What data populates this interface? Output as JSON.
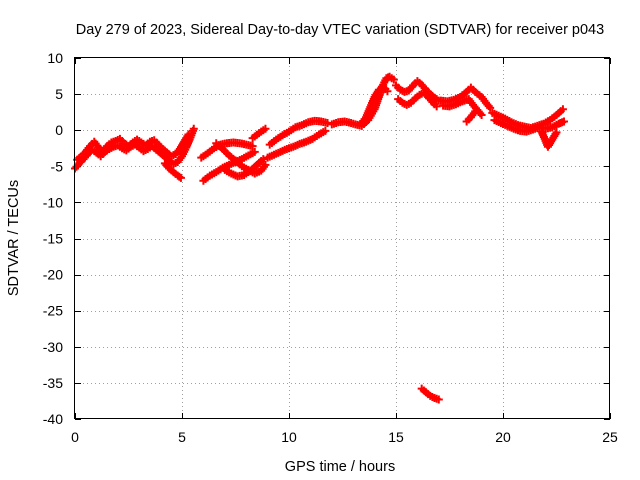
{
  "chart_data": {
    "type": "scatter",
    "title": "Day 279 of 2023, Sidereal Day-to-day VTEC variation (SDTVAR) for receiver p043",
    "xlabel": "GPS time / hours",
    "ylabel": "SDTVAR / TECUs",
    "xlim": [
      0,
      25
    ],
    "ylim": [
      -40,
      10
    ],
    "xticks": [
      0,
      5,
      10,
      15,
      20,
      25
    ],
    "yticks": [
      10,
      5,
      0,
      -5,
      -10,
      -15,
      -20,
      -25,
      -30,
      -35,
      -40
    ],
    "grid": true,
    "marker": "plus",
    "color": "#ff0000",
    "series": [
      {
        "name": "SDTVAR p043",
        "segments": [
          [
            [
              0.0,
              -5.3
            ],
            [
              0.2,
              -4.6
            ],
            [
              0.4,
              -4.0
            ],
            [
              0.6,
              -3.3
            ],
            [
              0.8,
              -2.7
            ],
            [
              1.0,
              -3.1
            ],
            [
              1.2,
              -3.6
            ],
            [
              1.4,
              -3.0
            ],
            [
              1.6,
              -2.6
            ],
            [
              1.8,
              -2.3
            ],
            [
              2.0,
              -2.1
            ],
            [
              2.2,
              -2.5
            ],
            [
              2.4,
              -2.8
            ],
            [
              2.6,
              -2.3
            ],
            [
              2.8,
              -2.0
            ],
            [
              3.0,
              -2.4
            ],
            [
              3.2,
              -2.9
            ],
            [
              3.4,
              -2.6
            ],
            [
              3.6,
              -2.2
            ],
            [
              3.8,
              -2.7
            ],
            [
              4.0,
              -3.2
            ],
            [
              4.2,
              -3.7
            ],
            [
              4.4,
              -4.2
            ],
            [
              4.6,
              -4.7
            ],
            [
              4.8,
              -4.4
            ],
            [
              5.0,
              -3.6
            ],
            [
              5.2,
              -2.4
            ],
            [
              5.4,
              -1.0
            ],
            [
              5.55,
              0.2
            ]
          ],
          [
            [
              0.1,
              -4.1
            ],
            [
              0.3,
              -3.6
            ],
            [
              0.5,
              -3.0
            ],
            [
              0.7,
              -2.2
            ],
            [
              0.9,
              -1.6
            ],
            [
              1.1,
              -2.4
            ],
            [
              1.3,
              -2.9
            ],
            [
              1.5,
              -2.2
            ],
            [
              1.7,
              -1.7
            ],
            [
              1.9,
              -1.5
            ],
            [
              2.1,
              -1.2
            ],
            [
              2.3,
              -1.8
            ],
            [
              2.5,
              -2.2
            ],
            [
              2.7,
              -1.7
            ],
            [
              2.9,
              -1.3
            ],
            [
              3.1,
              -1.7
            ],
            [
              3.3,
              -2.1
            ],
            [
              3.5,
              -1.6
            ],
            [
              3.7,
              -1.4
            ],
            [
              3.9,
              -2.0
            ],
            [
              4.1,
              -2.6
            ],
            [
              4.3,
              -3.1
            ],
            [
              4.5,
              -3.6
            ],
            [
              4.7,
              -3.3
            ],
            [
              4.9,
              -2.6
            ],
            [
              5.1,
              -1.6
            ],
            [
              5.3,
              -0.6
            ]
          ],
          [
            [
              4.2,
              -4.6
            ],
            [
              4.4,
              -5.3
            ],
            [
              4.6,
              -5.8
            ],
            [
              4.8,
              -6.3
            ],
            [
              4.95,
              -6.6
            ]
          ],
          [
            [
              6.0,
              -7.0
            ],
            [
              6.3,
              -6.3
            ],
            [
              6.6,
              -5.8
            ],
            [
              6.9,
              -5.2
            ],
            [
              7.2,
              -4.8
            ],
            [
              7.5,
              -4.4
            ],
            [
              7.8,
              -4.0
            ],
            [
              8.1,
              -3.5
            ],
            [
              8.4,
              -3.0
            ]
          ],
          [
            [
              5.9,
              -3.8
            ],
            [
              6.2,
              -3.2
            ],
            [
              6.5,
              -2.5
            ],
            [
              6.8,
              -2.0
            ],
            [
              7.1,
              -1.8
            ],
            [
              7.4,
              -1.7
            ],
            [
              7.7,
              -1.8
            ],
            [
              8.0,
              -2.0
            ],
            [
              8.3,
              -2.2
            ]
          ],
          [
            [
              6.6,
              -1.8
            ],
            [
              6.9,
              -2.6
            ],
            [
              7.2,
              -3.5
            ],
            [
              7.5,
              -4.2
            ],
            [
              7.8,
              -5.0
            ],
            [
              8.1,
              -5.5
            ],
            [
              8.4,
              -6.0
            ],
            [
              8.7,
              -5.6
            ],
            [
              8.9,
              -4.8
            ]
          ],
          [
            [
              7.0,
              -5.5
            ],
            [
              7.3,
              -6.0
            ],
            [
              7.6,
              -6.4
            ],
            [
              7.9,
              -6.2
            ],
            [
              8.2,
              -5.6
            ],
            [
              8.5,
              -4.8
            ],
            [
              8.8,
              -4.0
            ]
          ],
          [
            [
              9.0,
              -3.8
            ],
            [
              9.3,
              -3.4
            ],
            [
              9.6,
              -3.0
            ],
            [
              9.9,
              -2.6
            ],
            [
              10.2,
              -2.3
            ],
            [
              10.5,
              -1.9
            ],
            [
              10.8,
              -1.6
            ],
            [
              11.1,
              -1.2
            ],
            [
              11.4,
              -0.6
            ],
            [
              11.7,
              -0.1
            ]
          ],
          [
            [
              9.1,
              -2.0
            ],
            [
              9.4,
              -1.3
            ],
            [
              9.7,
              -0.7
            ],
            [
              10.0,
              -0.2
            ],
            [
              10.3,
              0.4
            ],
            [
              10.6,
              0.7
            ],
            [
              10.9,
              1.1
            ],
            [
              11.2,
              1.3
            ],
            [
              11.5,
              1.2
            ],
            [
              11.8,
              1.0
            ]
          ],
          [
            [
              8.3,
              -1.1
            ],
            [
              8.6,
              -0.4
            ],
            [
              8.9,
              0.2
            ]
          ],
          [
            [
              12.0,
              0.8
            ],
            [
              12.3,
              1.1
            ],
            [
              12.6,
              1.2
            ],
            [
              12.9,
              1.0
            ],
            [
              13.1,
              0.8
            ],
            [
              13.4,
              0.6
            ],
            [
              13.7,
              1.4
            ],
            [
              14.0,
              2.9
            ],
            [
              14.2,
              4.6
            ],
            [
              14.4,
              6.3
            ],
            [
              14.55,
              7.2
            ],
            [
              14.7,
              7.4
            ],
            [
              14.9,
              7.0
            ]
          ],
          [
            [
              13.4,
              1.0
            ],
            [
              13.6,
              1.8
            ],
            [
              13.8,
              3.2
            ],
            [
              14.0,
              4.6
            ],
            [
              14.2,
              5.6
            ],
            [
              14.4,
              6.0
            ],
            [
              14.6,
              5.4
            ]
          ],
          [
            [
              15.0,
              6.2
            ],
            [
              15.2,
              5.6
            ],
            [
              15.4,
              5.3
            ],
            [
              15.6,
              5.5
            ],
            [
              15.8,
              6.2
            ],
            [
              16.0,
              6.8
            ],
            [
              16.2,
              6.3
            ],
            [
              16.4,
              5.6
            ],
            [
              16.6,
              5.0
            ],
            [
              16.8,
              4.5
            ],
            [
              17.0,
              4.1
            ]
          ],
          [
            [
              15.1,
              4.3
            ],
            [
              15.3,
              3.8
            ],
            [
              15.5,
              3.5
            ],
            [
              15.7,
              3.8
            ],
            [
              15.9,
              4.4
            ],
            [
              16.1,
              4.9
            ],
            [
              16.3,
              5.2
            ],
            [
              16.5,
              4.6
            ],
            [
              16.7,
              3.9
            ],
            [
              16.9,
              3.3
            ]
          ],
          [
            [
              17.1,
              4.1
            ],
            [
              17.4,
              4.0
            ],
            [
              17.7,
              4.2
            ],
            [
              18.0,
              4.6
            ],
            [
              18.3,
              5.3
            ],
            [
              18.5,
              5.9
            ],
            [
              18.7,
              5.3
            ],
            [
              19.0,
              4.6
            ],
            [
              19.2,
              3.8
            ],
            [
              19.4,
              3.1
            ]
          ],
          [
            [
              17.2,
              3.4
            ],
            [
              17.5,
              3.3
            ],
            [
              17.8,
              3.6
            ],
            [
              18.1,
              4.0
            ],
            [
              18.4,
              4.3
            ],
            [
              18.6,
              3.5
            ],
            [
              18.8,
              2.8
            ],
            [
              19.0,
              2.1
            ]
          ],
          [
            [
              18.3,
              1.2
            ],
            [
              18.5,
              1.8
            ],
            [
              18.7,
              2.6
            ]
          ],
          [
            [
              19.5,
              2.4
            ],
            [
              19.8,
              2.0
            ],
            [
              20.1,
              1.6
            ],
            [
              20.4,
              1.1
            ],
            [
              20.7,
              0.7
            ],
            [
              21.0,
              0.5
            ],
            [
              21.3,
              0.3
            ],
            [
              21.6,
              0.6
            ],
            [
              21.9,
              0.9
            ],
            [
              22.2,
              1.4
            ],
            [
              22.5,
              2.1
            ],
            [
              22.8,
              2.9
            ]
          ],
          [
            [
              19.6,
              1.4
            ],
            [
              19.9,
              1.0
            ],
            [
              20.2,
              0.6
            ],
            [
              20.5,
              0.2
            ],
            [
              20.8,
              -0.1
            ],
            [
              21.1,
              -0.2
            ],
            [
              21.4,
              0.1
            ],
            [
              21.7,
              0.4
            ],
            [
              22.0,
              0.2
            ],
            [
              22.3,
              0.4
            ],
            [
              22.6,
              0.9
            ],
            [
              22.85,
              1.2
            ]
          ],
          [
            [
              21.8,
              -0.2
            ],
            [
              21.95,
              -1.2
            ],
            [
              22.1,
              -2.3
            ],
            [
              22.3,
              -1.3
            ],
            [
              22.5,
              -0.3
            ]
          ],
          [
            [
              16.2,
              -35.8
            ],
            [
              16.4,
              -36.3
            ],
            [
              16.6,
              -36.8
            ],
            [
              16.8,
              -37.1
            ],
            [
              17.0,
              -37.3
            ]
          ]
        ]
      }
    ]
  }
}
